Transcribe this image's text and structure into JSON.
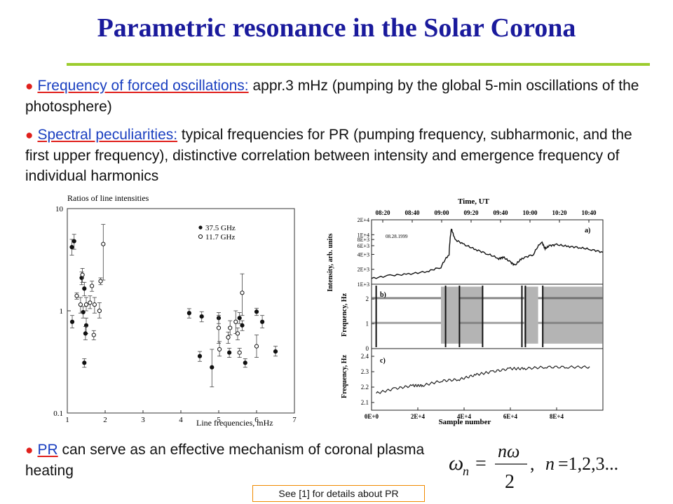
{
  "title": "Parametric resonance in the Solar Corona",
  "bullets": [
    {
      "lead": "Frequency of forced oscillations:",
      "text": " appr.3 mHz (pumping by the global 5-min oscillations of the photosphere)"
    },
    {
      "lead": "Spectral peculiarities:",
      "text": " typical frequencies for PR (pumping frequency, subharmonic, and the first upper frequency), distinctive correlation between intensity and emergence frequency of individual harmonics"
    },
    {
      "lead": "PR",
      "text": " can serve as an effective mechanism of coronal plasma heating"
    }
  ],
  "reference": "See [1] for details about PR",
  "chart_data": [
    {
      "type": "scatter",
      "title": "",
      "ylabel": "Ratios of line intensities",
      "xlabel": "Line frequencies, mHz",
      "yscale": "log",
      "xlim": [
        1,
        7
      ],
      "ylim": [
        0.1,
        10
      ],
      "xticks": [
        "1",
        "2",
        "3",
        "4",
        "5",
        "6",
        "7"
      ],
      "yticks": [
        "0.1",
        "1",
        "10"
      ],
      "legend_position": "top-right",
      "series": [
        {
          "name": "37.5 GHz",
          "marker": "filled",
          "points": [
            {
              "x": 1.12,
              "y": 4.2,
              "lo": 3.5,
              "hi": 5.0
            },
            {
              "x": 1.18,
              "y": 4.8,
              "lo": 4.0,
              "hi": 5.6
            },
            {
              "x": 1.13,
              "y": 0.78,
              "lo": 0.68,
              "hi": 0.9
            },
            {
              "x": 1.38,
              "y": 2.1,
              "lo": 1.8,
              "hi": 2.4
            },
            {
              "x": 1.45,
              "y": 1.65,
              "lo": 1.4,
              "hi": 1.9
            },
            {
              "x": 1.5,
              "y": 0.72,
              "lo": 0.6,
              "hi": 0.85
            },
            {
              "x": 1.48,
              "y": 0.6,
              "lo": 0.52,
              "hi": 0.7
            },
            {
              "x": 1.45,
              "y": 0.31,
              "lo": 0.28,
              "hi": 0.34
            },
            {
              "x": 1.42,
              "y": 0.97,
              "lo": 0.85,
              "hi": 1.1
            },
            {
              "x": 4.22,
              "y": 0.95,
              "lo": 0.85,
              "hi": 1.05
            },
            {
              "x": 4.55,
              "y": 0.88,
              "lo": 0.78,
              "hi": 0.98
            },
            {
              "x": 4.5,
              "y": 0.36,
              "lo": 0.32,
              "hi": 0.4
            },
            {
              "x": 4.82,
              "y": 0.28,
              "lo": 0.18,
              "hi": 0.42
            },
            {
              "x": 5.0,
              "y": 0.85,
              "lo": 0.75,
              "hi": 0.96
            },
            {
              "x": 5.28,
              "y": 0.39,
              "lo": 0.35,
              "hi": 0.43
            },
            {
              "x": 5.55,
              "y": 0.85,
              "lo": 0.75,
              "hi": 0.96
            },
            {
              "x": 5.62,
              "y": 0.72,
              "lo": 0.64,
              "hi": 0.8
            },
            {
              "x": 5.7,
              "y": 0.31,
              "lo": 0.28,
              "hi": 0.34
            },
            {
              "x": 6.0,
              "y": 0.98,
              "lo": 0.9,
              "hi": 1.06
            },
            {
              "x": 6.15,
              "y": 0.78,
              "lo": 0.68,
              "hi": 0.9
            },
            {
              "x": 6.5,
              "y": 0.4,
              "lo": 0.36,
              "hi": 0.45
            }
          ]
        },
        {
          "name": "11.7 GHz",
          "marker": "open",
          "points": [
            {
              "x": 1.25,
              "y": 1.4,
              "lo": 1.3,
              "hi": 1.5
            },
            {
              "x": 1.35,
              "y": 1.15,
              "lo": 0.95,
              "hi": 1.35
            },
            {
              "x": 1.4,
              "y": 2.25,
              "lo": 1.9,
              "hi": 2.6
            },
            {
              "x": 1.5,
              "y": 1.15,
              "lo": 1.0,
              "hi": 1.35
            },
            {
              "x": 1.6,
              "y": 1.2,
              "lo": 1.05,
              "hi": 1.4
            },
            {
              "x": 1.65,
              "y": 1.75,
              "lo": 1.55,
              "hi": 1.95
            },
            {
              "x": 1.7,
              "y": 0.58,
              "lo": 0.52,
              "hi": 0.64
            },
            {
              "x": 1.72,
              "y": 1.15,
              "lo": 0.95,
              "hi": 1.35
            },
            {
              "x": 1.85,
              "y": 1.0,
              "lo": 0.85,
              "hi": 1.2
            },
            {
              "x": 1.88,
              "y": 1.95,
              "lo": 1.8,
              "hi": 2.1
            },
            {
              "x": 1.95,
              "y": 4.5,
              "lo": 2.0,
              "hi": 7.0
            },
            {
              "x": 5.0,
              "y": 0.68,
              "lo": 0.48,
              "hi": 0.9
            },
            {
              "x": 5.02,
              "y": 0.42,
              "lo": 0.36,
              "hi": 0.5
            },
            {
              "x": 5.25,
              "y": 0.55,
              "lo": 0.48,
              "hi": 0.62
            },
            {
              "x": 5.3,
              "y": 0.68,
              "lo": 0.58,
              "hi": 0.8
            },
            {
              "x": 5.45,
              "y": 0.78,
              "lo": 0.6,
              "hi": 1.0
            },
            {
              "x": 5.5,
              "y": 0.6,
              "lo": 0.52,
              "hi": 0.68
            },
            {
              "x": 5.55,
              "y": 0.39,
              "lo": 0.35,
              "hi": 0.43
            },
            {
              "x": 5.62,
              "y": 1.5,
              "lo": 0.9,
              "hi": 2.3
            },
            {
              "x": 6.0,
              "y": 0.45,
              "lo": 0.35,
              "hi": 0.58
            }
          ]
        }
      ]
    },
    {
      "type": "line",
      "title": "",
      "top_axis_label": "Time, UT",
      "top_ticks": [
        "08:20",
        "08:40",
        "09:00",
        "09:20",
        "09:40",
        "10:00",
        "10:20",
        "10:40"
      ],
      "xlabel": "Sample number",
      "xticks": [
        "0E+0",
        "2E+4",
        "4E+4",
        "6E+4",
        "8E+4"
      ],
      "xlim": [
        0,
        100000
      ],
      "panels": [
        {
          "label": "a)",
          "ylabel": "Intensity, arb. units",
          "date": "08.28.1999",
          "yticks": [
            "1E+3",
            "2E+3",
            "4E+3",
            "6E+3",
            "8E+3",
            "1E+4",
            "2E+4"
          ],
          "series": {
            "x": [
              0,
              8000,
              16000,
              24000,
              30000,
              33500,
              34500,
              36000,
              40000,
              45000,
              50000,
              55000,
              57000,
              60000,
              62000,
              65000,
              70000,
              73500,
              75000,
              77000,
              80000,
              85000,
              90000,
              95000,
              100000
            ],
            "y": [
              1.3,
              1.5,
              1.6,
              1.8,
              2.2,
              4.0,
              13.0,
              8.0,
              6.3,
              5.0,
              4.1,
              3.3,
              3.5,
              2.8,
              2.4,
              3.3,
              4.0,
              7.2,
              5.2,
              6.0,
              6.3,
              5.8,
              5.5,
              5.0,
              4.4
            ]
          }
        },
        {
          "label": "b)",
          "ylabel": "Frequency, Hz",
          "yticks": [
            "0",
            "1",
            "2"
          ],
          "ylim": [
            0,
            2.6
          ],
          "note": "dynamic spectrum with bands near 1 and 2 Hz"
        },
        {
          "label": "c)",
          "ylabel": "Frequency, Hz",
          "yticks": [
            "2.1",
            "2.2",
            "2.3",
            "2.4"
          ],
          "ylim": [
            2.05,
            2.45
          ],
          "series": {
            "x": [
              2000,
              10000,
              18000,
              22000,
              30000,
              38000,
              45000,
              52000,
              60000,
              66000,
              75000,
              85000,
              95000
            ],
            "y": [
              2.16,
              2.19,
              2.21,
              2.21,
              2.24,
              2.25,
              2.28,
              2.3,
              2.32,
              2.32,
              2.33,
              2.33,
              2.33
            ]
          }
        }
      ]
    }
  ]
}
